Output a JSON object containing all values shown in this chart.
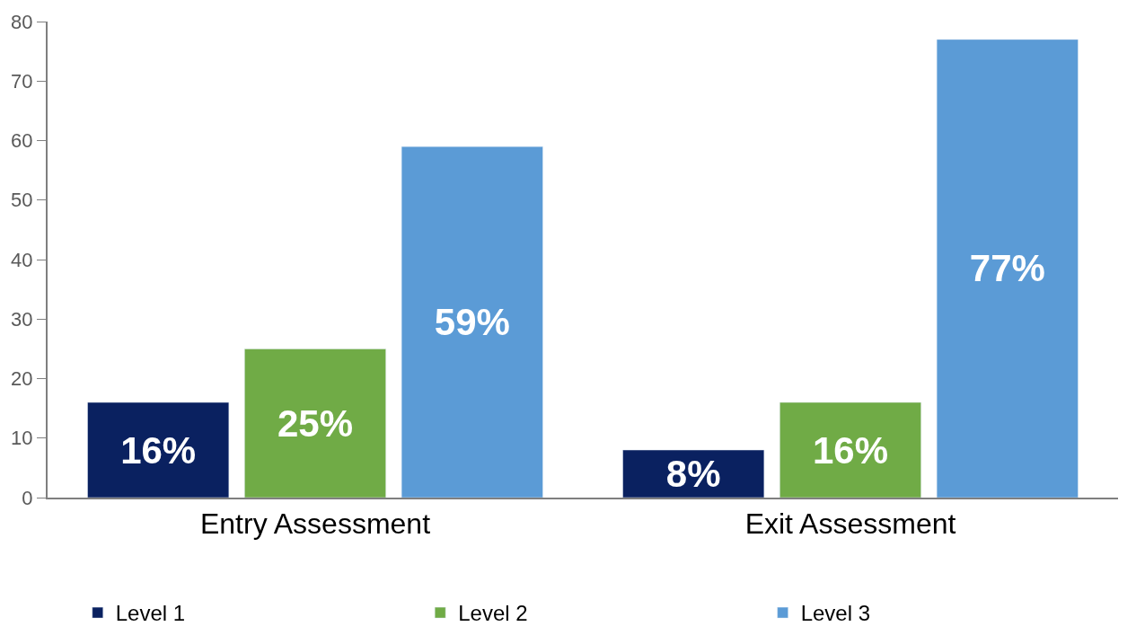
{
  "chart_data": {
    "type": "bar",
    "categories": [
      "Entry Assessment",
      "Exit Assessment"
    ],
    "series": [
      {
        "name": "Level 1",
        "color": "#0a2160",
        "values": [
          16,
          8
        ],
        "value_labels": [
          "16%",
          "8%"
        ]
      },
      {
        "name": "Level 2",
        "color": "#70ab46",
        "values": [
          25,
          16
        ],
        "value_labels": [
          "25%",
          "16%"
        ]
      },
      {
        "name": "Level 3",
        "color": "#5b9bd6",
        "values": [
          59,
          77
        ],
        "value_labels": [
          "59%",
          "77%"
        ]
      }
    ],
    "ylim": [
      0,
      80
    ],
    "yticks": [
      0,
      10,
      20,
      30,
      40,
      50,
      60,
      70,
      80
    ],
    "legend": "bottom"
  }
}
